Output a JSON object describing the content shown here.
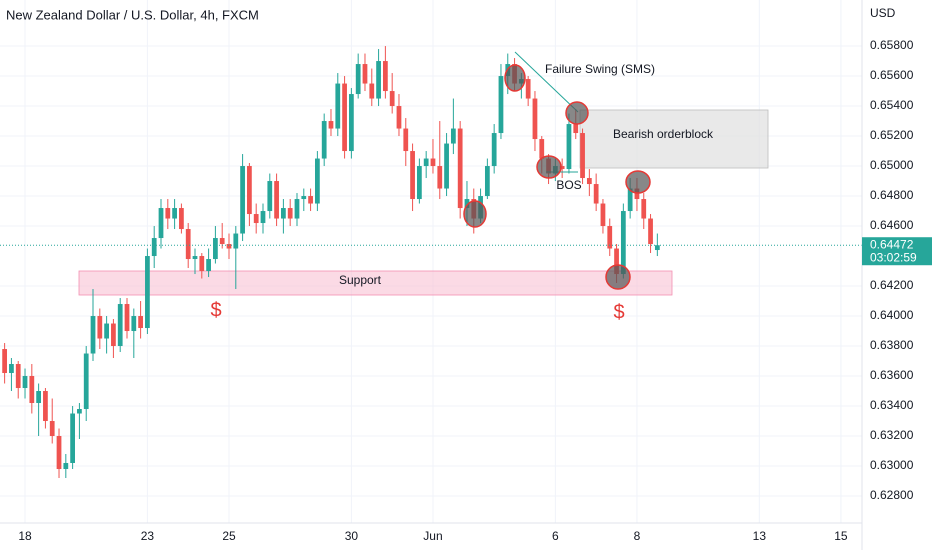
{
  "chart_data": {
    "type": "candlestick",
    "title": "New Zealand Dollar / U.S. Dollar, 4h, FXCM",
    "y_axis_label": "USD",
    "up_color": "#26a69a",
    "down_color": "#ef5350",
    "grid": true,
    "open": [
      0.6378,
      0.6362,
      0.6368,
      0.6352,
      0.636,
      0.6342,
      0.635,
      0.633,
      0.632,
      0.6298,
      0.6302,
      0.6335,
      0.6338,
      0.6375,
      0.64,
      0.6385,
      0.6395,
      0.638,
      0.6408,
      0.639,
      0.64,
      0.6392,
      0.644,
      0.6452,
      0.6472,
      0.6465,
      0.6472,
      0.6458,
      0.6438,
      0.644,
      0.643,
      0.6438,
      0.6452,
      0.6448,
      0.6445,
      0.6455,
      0.65,
      0.6468,
      0.6462,
      0.647,
      0.649,
      0.6465,
      0.6472,
      0.6465,
      0.6478,
      0.648,
      0.6475,
      0.6505,
      0.653,
      0.6525,
      0.6555,
      0.651,
      0.6548,
      0.6568,
      0.6555,
      0.6545,
      0.657,
      0.655,
      0.654,
      0.6525,
      0.651,
      0.6478,
      0.65,
      0.6505,
      0.65,
      0.6485,
      0.6515,
      0.6525,
      0.6472,
      0.6478,
      0.6465,
      0.648,
      0.65,
      0.6522,
      0.656,
      0.6568,
      0.6555,
      0.6558,
      0.6545,
      0.6518,
      0.6505,
      0.6495,
      0.65,
      0.6498,
      0.6528,
      0.6522,
      0.6492,
      0.6488,
      0.6475,
      0.646,
      0.6445,
      0.6428,
      0.647,
      0.6485,
      0.6478,
      0.6465,
      0.6444
    ],
    "high": [
      0.6382,
      0.6372,
      0.637,
      0.6365,
      0.6368,
      0.6355,
      0.6352,
      0.6345,
      0.6325,
      0.6308,
      0.634,
      0.6342,
      0.638,
      0.6418,
      0.6405,
      0.64,
      0.6398,
      0.6412,
      0.6412,
      0.6405,
      0.641,
      0.6445,
      0.646,
      0.6478,
      0.6478,
      0.6478,
      0.6475,
      0.6462,
      0.6445,
      0.6442,
      0.6445,
      0.646,
      0.6462,
      0.6455,
      0.646,
      0.6508,
      0.6502,
      0.6475,
      0.6475,
      0.6495,
      0.6495,
      0.6478,
      0.6478,
      0.6482,
      0.6485,
      0.6485,
      0.651,
      0.6535,
      0.6538,
      0.6562,
      0.656,
      0.6552,
      0.6575,
      0.6575,
      0.6565,
      0.6578,
      0.658,
      0.6562,
      0.6548,
      0.6532,
      0.6515,
      0.6505,
      0.651,
      0.6518,
      0.653,
      0.6522,
      0.6545,
      0.653,
      0.649,
      0.6485,
      0.6485,
      0.6505,
      0.6528,
      0.6568,
      0.6575,
      0.6572,
      0.6562,
      0.656,
      0.655,
      0.652,
      0.6508,
      0.6505,
      0.6505,
      0.6535,
      0.6538,
      0.6525,
      0.6498,
      0.6495,
      0.6478,
      0.6465,
      0.6448,
      0.6475,
      0.6492,
      0.6492,
      0.6482,
      0.6468,
      0.6455
    ],
    "low": [
      0.6355,
      0.635,
      0.6345,
      0.6345,
      0.6335,
      0.632,
      0.6325,
      0.6315,
      0.6292,
      0.6292,
      0.6298,
      0.6318,
      0.633,
      0.637,
      0.6378,
      0.6375,
      0.6372,
      0.6376,
      0.6385,
      0.6372,
      0.6385,
      0.6388,
      0.6432,
      0.6445,
      0.6458,
      0.6458,
      0.6455,
      0.6432,
      0.6428,
      0.6425,
      0.6426,
      0.6435,
      0.6445,
      0.6438,
      0.6418,
      0.645,
      0.646,
      0.6455,
      0.6455,
      0.6465,
      0.646,
      0.6455,
      0.646,
      0.646,
      0.647,
      0.647,
      0.647,
      0.65,
      0.652,
      0.652,
      0.6505,
      0.6505,
      0.6545,
      0.655,
      0.654,
      0.654,
      0.6545,
      0.6535,
      0.652,
      0.65,
      0.647,
      0.6475,
      0.6492,
      0.6495,
      0.6478,
      0.648,
      0.6508,
      0.6465,
      0.646,
      0.6455,
      0.6462,
      0.6478,
      0.6495,
      0.6518,
      0.6548,
      0.655,
      0.6545,
      0.654,
      0.651,
      0.6495,
      0.6488,
      0.649,
      0.6492,
      0.6495,
      0.6518,
      0.6488,
      0.648,
      0.647,
      0.6455,
      0.644,
      0.6422,
      0.6425,
      0.6465,
      0.647,
      0.6458,
      0.6442,
      0.644
    ],
    "close": [
      0.6362,
      0.6368,
      0.6352,
      0.636,
      0.6342,
      0.635,
      0.633,
      0.632,
      0.6298,
      0.6302,
      0.6335,
      0.6338,
      0.6375,
      0.64,
      0.6385,
      0.6395,
      0.638,
      0.6408,
      0.639,
      0.64,
      0.6392,
      0.644,
      0.6452,
      0.6472,
      0.6465,
      0.6472,
      0.6458,
      0.6438,
      0.644,
      0.643,
      0.6438,
      0.6452,
      0.6448,
      0.6445,
      0.6455,
      0.65,
      0.6468,
      0.6462,
      0.647,
      0.649,
      0.6465,
      0.6472,
      0.6465,
      0.6478,
      0.648,
      0.6475,
      0.6505,
      0.653,
      0.6525,
      0.6555,
      0.651,
      0.6548,
      0.6568,
      0.6555,
      0.6545,
      0.657,
      0.655,
      0.654,
      0.6525,
      0.651,
      0.6478,
      0.65,
      0.6505,
      0.65,
      0.6485,
      0.6515,
      0.6525,
      0.6472,
      0.6478,
      0.6465,
      0.648,
      0.65,
      0.6522,
      0.656,
      0.6568,
      0.6555,
      0.6558,
      0.6545,
      0.6518,
      0.6505,
      0.6495,
      0.65,
      0.6498,
      0.6528,
      0.6522,
      0.6492,
      0.6488,
      0.6475,
      0.646,
      0.6445,
      0.6428,
      0.647,
      0.6485,
      0.6478,
      0.6465,
      0.6448,
      0.64472
    ],
    "xlim": [
      -0.68,
      126.1
    ],
    "xticks": [
      {
        "value": 3,
        "label": "18"
      },
      {
        "value": 21,
        "label": "23"
      },
      {
        "value": 33,
        "label": "25"
      },
      {
        "value": 51,
        "label": "30"
      },
      {
        "value": 63,
        "label": "Jun"
      },
      {
        "value": 81,
        "label": "6"
      },
      {
        "value": 93,
        "label": "8"
      },
      {
        "value": 111,
        "label": "13"
      },
      {
        "value": 123,
        "label": "15"
      }
    ],
    "ylim": [
      0.6262,
      0.66107
    ],
    "yticks": [
      {
        "value": 0.628,
        "label": "0.62800"
      },
      {
        "value": 0.63,
        "label": "0.63000"
      },
      {
        "value": 0.632,
        "label": "0.63200"
      },
      {
        "value": 0.634,
        "label": "0.63400"
      },
      {
        "value": 0.636,
        "label": "0.63600"
      },
      {
        "value": 0.638,
        "label": "0.63800"
      },
      {
        "value": 0.64,
        "label": "0.64000"
      },
      {
        "value": 0.642,
        "label": "0.64200"
      },
      {
        "value": 0.646,
        "label": "0.64600"
      },
      {
        "value": 0.648,
        "label": "0.64800"
      },
      {
        "value": 0.65,
        "label": "0.65000"
      },
      {
        "value": 0.652,
        "label": "0.65200"
      },
      {
        "value": 0.654,
        "label": "0.65400"
      },
      {
        "value": 0.656,
        "label": "0.65600"
      },
      {
        "value": 0.658,
        "label": "0.65800"
      }
    ],
    "last_price_label": "0.64472",
    "countdown": "03:02:59",
    "annotations": {
      "sms": "Failure Swing (SMS)",
      "orderblock": "Bearish orderblock",
      "bos": "BOS",
      "support": "Support",
      "dollar_left": "$",
      "dollar_right": "$"
    }
  }
}
